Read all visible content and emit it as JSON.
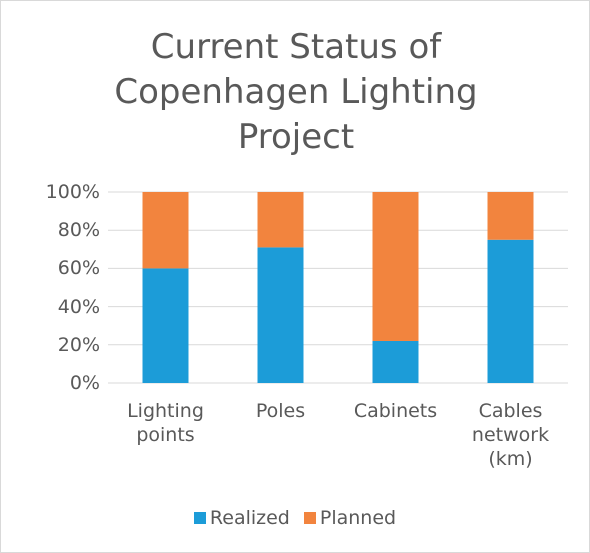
{
  "chart_data": {
    "type": "stacked_bar",
    "title": "Current Status of Copenhagen Lighting Project",
    "categories": [
      "Lighting points",
      "Poles",
      "Cabinets",
      "Cables network (km)"
    ],
    "series": [
      {
        "name": "Realized",
        "color": "#1c9cd8",
        "values": [
          60,
          71,
          22,
          75
        ]
      },
      {
        "name": "Planned",
        "color": "#f2843e",
        "values": [
          40,
          29,
          78,
          25
        ]
      }
    ],
    "ylim": [
      0,
      100
    ],
    "yticks": [
      {
        "value": 0,
        "label": "0%"
      },
      {
        "value": 20,
        "label": "20%"
      },
      {
        "value": 40,
        "label": "40%"
      },
      {
        "value": 60,
        "label": "60%"
      },
      {
        "value": 80,
        "label": "80%"
      },
      {
        "value": 100,
        "label": "100%"
      }
    ],
    "grid": true,
    "legend": "bottom"
  }
}
